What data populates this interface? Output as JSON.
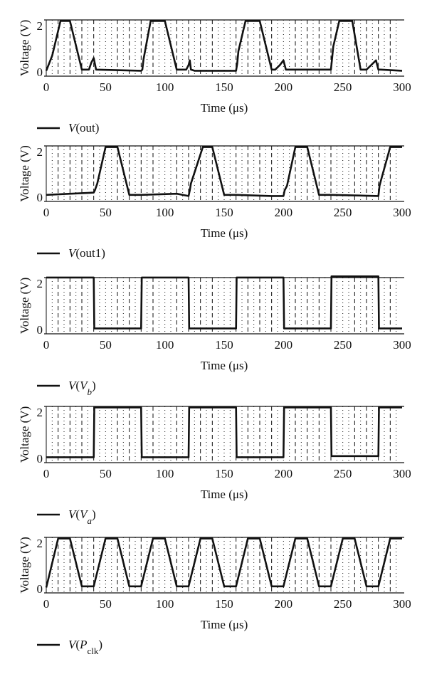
{
  "figure": {
    "panel_count": 5
  },
  "chart_data": [
    {
      "type": "line",
      "xlabel": "Time (μs)",
      "ylabel": "Voltage (V)",
      "xlim": [
        0,
        300
      ],
      "ylim": [
        0,
        2.3
      ],
      "xticks": [
        0,
        50,
        100,
        150,
        200,
        250,
        300
      ],
      "yticks": [
        0,
        2
      ],
      "grid": "dashed verticals every 10 μs, dotted verticals at midpoints",
      "legend_placement": "below plot, left",
      "series": [
        {
          "name": "V(out)",
          "x": [
            0,
            5,
            12,
            20,
            30,
            33,
            36,
            38,
            40,
            42,
            80,
            81,
            82,
            88,
            100,
            110,
            118,
            120,
            121,
            122,
            125,
            160,
            161,
            162,
            168,
            172,
            180,
            190,
            193,
            197,
            200,
            202,
            240,
            241,
            242,
            247,
            258,
            265,
            270,
            274,
            278,
            280,
            282,
            300
          ],
          "y": [
            0.05,
            0.7,
            2.2,
            2.2,
            0.1,
            0.1,
            0.1,
            0.4,
            0.6,
            0.1,
            0.05,
            0.1,
            0.55,
            2.2,
            2.2,
            0.1,
            0.1,
            0.3,
            0.5,
            0.1,
            0.05,
            0.05,
            0.35,
            0.9,
            2.2,
            2.2,
            2.2,
            0.1,
            0.1,
            0.3,
            0.5,
            0.1,
            0.1,
            0.6,
            1.1,
            2.2,
            2.2,
            0.1,
            0.1,
            0.3,
            0.5,
            0.1,
            0.1,
            0.05
          ]
        }
      ]
    },
    {
      "type": "line",
      "xlabel": "Time (μs)",
      "ylabel": "Voltage (V)",
      "xlim": [
        0,
        300
      ],
      "ylim": [
        0,
        2.3
      ],
      "xticks": [
        0,
        50,
        100,
        150,
        200,
        250,
        300
      ],
      "yticks": [
        0,
        2
      ],
      "grid": "dashed verticals every 10 μs, dotted verticals at midpoints",
      "legend_placement": "below plot, left",
      "series": [
        {
          "name": "V(out1)",
          "x": [
            0,
            40,
            41,
            43,
            50,
            60,
            70,
            80,
            110,
            120,
            121,
            122,
            132,
            140,
            150,
            160,
            190,
            200,
            201,
            203,
            210,
            220,
            230,
            240,
            280,
            281,
            282,
            290,
            300
          ],
          "y": [
            0.1,
            0.2,
            0.3,
            0.6,
            2.2,
            2.2,
            0.1,
            0.1,
            0.15,
            0.05,
            0.3,
            0.6,
            2.2,
            2.2,
            0.1,
            0.1,
            0.05,
            0.05,
            0.3,
            0.5,
            2.2,
            2.2,
            0.1,
            0.1,
            0.05,
            0.5,
            0.7,
            2.2,
            2.2
          ]
        }
      ]
    },
    {
      "type": "line",
      "xlabel": "Time (μs)",
      "ylabel": "Voltage (V)",
      "xlim": [
        0,
        300
      ],
      "ylim": [
        0,
        2.3
      ],
      "xticks": [
        0,
        50,
        100,
        150,
        200,
        250,
        300
      ],
      "yticks": [
        0,
        2
      ],
      "grid": "dashed verticals every 10 μs, dotted verticals at midpoints",
      "legend_placement": "below plot, left",
      "series": [
        {
          "name": "V(Vb)",
          "x": [
            0,
            40,
            40.5,
            80,
            80.5,
            120,
            120.5,
            160,
            160.5,
            200,
            200.5,
            240,
            240.5,
            280,
            280.5,
            300
          ],
          "y": [
            2.25,
            2.25,
            0.05,
            0.05,
            2.25,
            2.25,
            0.05,
            0.05,
            2.25,
            2.25,
            0.05,
            0.05,
            2.3,
            2.3,
            0.05,
            0.05
          ]
        }
      ]
    },
    {
      "type": "line",
      "xlabel": "Time (μs)",
      "ylabel": "Voltage (V)",
      "xlim": [
        0,
        300
      ],
      "ylim": [
        0,
        2.3
      ],
      "xticks": [
        0,
        50,
        100,
        150,
        200,
        250,
        300
      ],
      "yticks": [
        0,
        2
      ],
      "grid": "dashed verticals every 10 μs, dotted verticals at midpoints",
      "legend_placement": "below plot, left",
      "series": [
        {
          "name": "V(Va)",
          "x": [
            0,
            40,
            40.5,
            80,
            80.5,
            120,
            120.5,
            160,
            160.5,
            200,
            200.5,
            240,
            240.5,
            280,
            280.5,
            300
          ],
          "y": [
            0.05,
            0.05,
            2.2,
            2.2,
            0.05,
            0.05,
            2.2,
            2.2,
            0.05,
            0.05,
            2.2,
            2.2,
            0.1,
            0.1,
            2.2,
            2.2
          ]
        }
      ]
    },
    {
      "type": "line",
      "xlabel": "Time (μs)",
      "ylabel": "Voltage (V)",
      "xlim": [
        0,
        300
      ],
      "ylim": [
        0,
        2.3
      ],
      "xticks": [
        0,
        50,
        100,
        150,
        200,
        250,
        300
      ],
      "yticks": [
        0,
        2
      ],
      "grid": "dashed verticals every 10 μs, dotted verticals at midpoints",
      "legend_placement": "below plot, left",
      "series": [
        {
          "name": "V(Pclk)",
          "x": [
            0,
            10,
            20,
            30,
            40,
            50,
            60,
            70,
            80,
            90,
            100,
            110,
            120,
            130,
            140,
            150,
            160,
            170,
            180,
            190,
            200,
            210,
            220,
            230,
            240,
            250,
            260,
            270,
            280,
            290,
            300
          ],
          "y": [
            0.05,
            2.2,
            2.2,
            0.1,
            0.1,
            2.2,
            2.2,
            0.1,
            0.1,
            2.2,
            2.2,
            0.1,
            0.1,
            2.2,
            2.2,
            0.1,
            0.1,
            2.2,
            2.2,
            0.1,
            0.1,
            2.2,
            2.2,
            0.1,
            0.1,
            2.2,
            2.2,
            0.1,
            0.1,
            2.2,
            2.2
          ]
        }
      ]
    }
  ]
}
